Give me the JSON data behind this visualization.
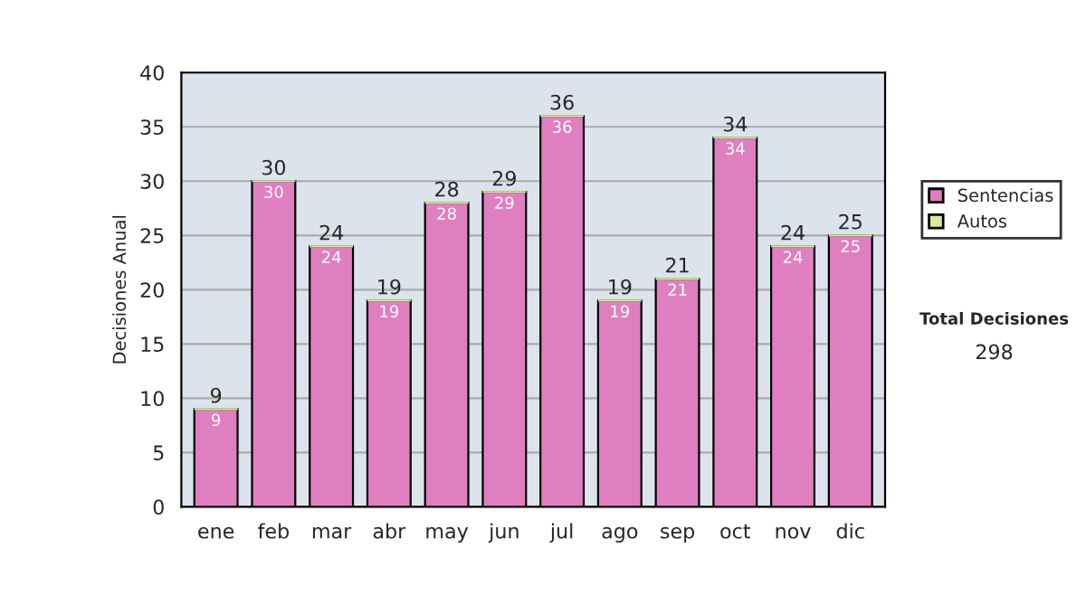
{
  "chart_data": {
    "type": "bar",
    "stacked": true,
    "ylabel": "Decisiones Anual",
    "categories": [
      "ene",
      "feb",
      "mar",
      "abr",
      "may",
      "jun",
      "jul",
      "ago",
      "sep",
      "oct",
      "nov",
      "dic"
    ],
    "series": [
      {
        "name": "Sentencias",
        "color": "#e07fc0",
        "values": [
          9,
          30,
          24,
          19,
          28,
          29,
          36,
          19,
          21,
          34,
          24,
          25
        ],
        "value_labels": [
          "9",
          "30",
          "24",
          "19",
          "28",
          "29",
          "36",
          "19",
          "21",
          "34",
          "24",
          "25"
        ]
      },
      {
        "name": "Autos",
        "color": "#d8eca0",
        "values": [
          0,
          0,
          0,
          0,
          0,
          0,
          0,
          0,
          0,
          0,
          0,
          0
        ]
      }
    ],
    "totals": [
      "9",
      "30",
      "24",
      "19",
      "28",
      "29",
      "36",
      "19",
      "21",
      "34",
      "24",
      "25"
    ],
    "ylim": [
      0,
      40
    ],
    "yticks": [
      0,
      5,
      10,
      15,
      20,
      25,
      30,
      35,
      40
    ],
    "grid": "y",
    "legend": "right",
    "annotations": [
      "Total Decisiones",
      "298"
    ]
  }
}
